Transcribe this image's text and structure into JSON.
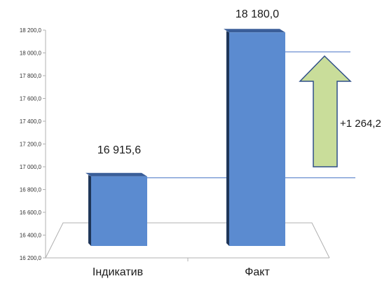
{
  "chart_data": {
    "type": "bar",
    "categories": [
      "Індикатив",
      "Факт"
    ],
    "values": [
      16915.6,
      18180.0
    ],
    "value_labels": [
      "16 915,6",
      "18 180,0"
    ],
    "ylim": [
      16200,
      18200
    ],
    "yticks": [
      16200,
      16400,
      16600,
      16800,
      17000,
      17200,
      17400,
      17600,
      17800,
      18000,
      18200
    ],
    "ytick_labels": [
      "16 200,0",
      "16 400,0",
      "16 600,0",
      "16 800,0",
      "17 000,0",
      "17 200,0",
      "17 400,0",
      "17 600,0",
      "17 800,0",
      "18 000,0",
      "18 200,0"
    ],
    "grid": false,
    "legend": false,
    "annotation": {
      "label": "+1 264,2",
      "from_value": 16915.6,
      "to_value": 18180.0,
      "arrow_direction": "up"
    },
    "colors": {
      "bar_front": "#5b8bd0",
      "bar_top": "#3a5e99",
      "bar_side": "#1f3659",
      "arrow_fill": "#c9dd9a",
      "arrow_stroke": "#2f4f88",
      "ref_line": "#4472c4",
      "axis": "#b0b0b0"
    }
  }
}
